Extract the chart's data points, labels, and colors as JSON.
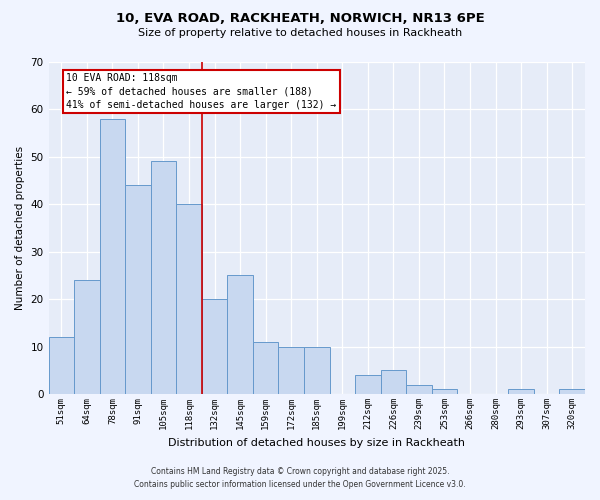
{
  "title1": "10, EVA ROAD, RACKHEATH, NORWICH, NR13 6PE",
  "title2": "Size of property relative to detached houses in Rackheath",
  "xlabel": "Distribution of detached houses by size in Rackheath",
  "ylabel": "Number of detached properties",
  "bar_labels": [
    "51sqm",
    "64sqm",
    "78sqm",
    "91sqm",
    "105sqm",
    "118sqm",
    "132sqm",
    "145sqm",
    "159sqm",
    "172sqm",
    "185sqm",
    "199sqm",
    "212sqm",
    "226sqm",
    "239sqm",
    "253sqm",
    "266sqm",
    "280sqm",
    "293sqm",
    "307sqm",
    "320sqm"
  ],
  "bar_values": [
    12,
    24,
    58,
    44,
    49,
    40,
    20,
    25,
    11,
    10,
    10,
    0,
    4,
    5,
    2,
    1,
    0,
    0,
    1,
    0,
    1
  ],
  "bar_color": "#c8d8f0",
  "bar_edge_color": "#6699cc",
  "vline_x": 5.5,
  "vline_color": "#cc0000",
  "annotation_title": "10 EVA ROAD: 118sqm",
  "annotation_line1": "← 59% of detached houses are smaller (188)",
  "annotation_line2": "41% of semi-detached houses are larger (132) →",
  "annotation_box_color": "#cc0000",
  "ylim": [
    0,
    70
  ],
  "yticks": [
    0,
    10,
    20,
    30,
    40,
    50,
    60,
    70
  ],
  "footer1": "Contains HM Land Registry data © Crown copyright and database right 2025.",
  "footer2": "Contains public sector information licensed under the Open Government Licence v3.0.",
  "bg_color": "#f0f4ff",
  "plot_bg_color": "#e6ecf8"
}
